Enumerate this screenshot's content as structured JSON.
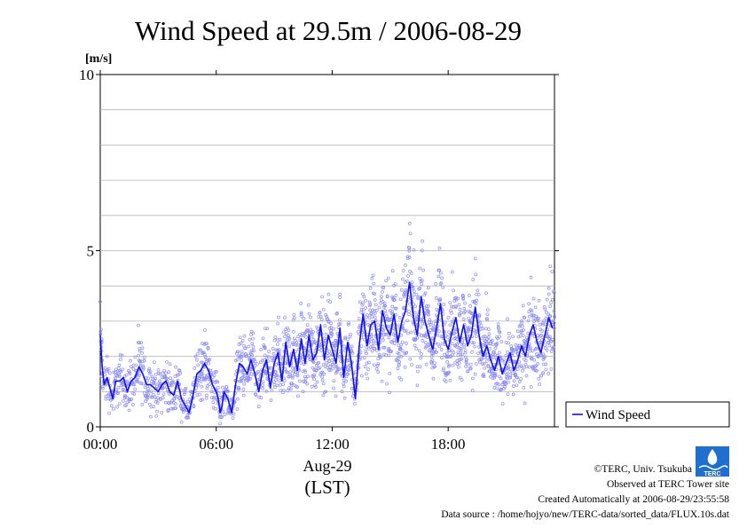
{
  "chart_data": {
    "type": "line",
    "title": "Wind Speed at 29.5m / 2006-08-29",
    "yunit": "[m/s]",
    "ylim": [
      0,
      10
    ],
    "yticks": [
      0,
      5,
      10
    ],
    "ygrid": [
      1,
      2,
      3,
      4,
      5,
      6,
      7,
      8,
      9
    ],
    "xlim_hours": [
      0,
      23.5
    ],
    "xticks": [
      {
        "hour": 0,
        "label": "00:00"
      },
      {
        "hour": 6,
        "label": "06:00"
      },
      {
        "hour": 12,
        "label": "12:00"
      },
      {
        "hour": 18,
        "label": "18:00"
      }
    ],
    "xlabel_date": "Aug-29",
    "xlabel_tz": "(LST)",
    "legend": {
      "label": "Wind Speed",
      "position": "right"
    },
    "series": [
      {
        "name": "Wind Speed",
        "color": "#1010ee",
        "scatter_color": "#8c8cf2",
        "x": [
          0,
          0.1,
          0.2,
          0.35,
          0.5,
          0.65,
          0.8,
          1.0,
          1.2,
          1.4,
          1.6,
          1.8,
          2.0,
          2.2,
          2.4,
          2.6,
          2.8,
          3.0,
          3.2,
          3.4,
          3.6,
          3.8,
          4.0,
          4.2,
          4.4,
          4.6,
          4.8,
          5.0,
          5.2,
          5.4,
          5.6,
          5.8,
          6.0,
          6.1,
          6.2,
          6.3,
          6.4,
          6.5,
          6.6,
          6.8,
          7.0,
          7.2,
          7.4,
          7.6,
          7.8,
          8.0,
          8.2,
          8.4,
          8.6,
          8.8,
          9.0,
          9.2,
          9.4,
          9.6,
          9.8,
          10.0,
          10.2,
          10.4,
          10.6,
          10.8,
          11.0,
          11.2,
          11.4,
          11.6,
          11.8,
          12.0,
          12.2,
          12.4,
          12.6,
          12.8,
          13.0,
          13.2,
          13.4,
          13.6,
          13.8,
          14.0,
          14.2,
          14.4,
          14.6,
          14.8,
          15.0,
          15.2,
          15.4,
          15.6,
          15.8,
          16.0,
          16.2,
          16.4,
          16.6,
          16.8,
          17.0,
          17.2,
          17.4,
          17.6,
          17.8,
          18.0,
          18.2,
          18.4,
          18.6,
          18.8,
          19.0,
          19.2,
          19.4,
          19.6,
          19.8,
          20.0,
          20.2,
          20.4,
          20.6,
          20.8,
          21.0,
          21.2,
          21.4,
          21.6,
          21.8,
          22.0,
          22.2,
          22.4,
          22.6,
          22.8,
          23.0,
          23.2,
          23.4
        ],
        "y": [
          2.6,
          1.7,
          1.2,
          1.4,
          1.1,
          0.8,
          1.3,
          1.3,
          1.4,
          1.0,
          1.3,
          1.4,
          1.7,
          1.5,
          1.2,
          1.2,
          1.1,
          1.0,
          1.2,
          1.3,
          1.0,
          0.9,
          1.3,
          0.8,
          0.6,
          0.4,
          0.9,
          1.5,
          1.6,
          1.8,
          1.6,
          1.2,
          1.0,
          0.8,
          0.4,
          0.6,
          1.0,
          0.9,
          0.8,
          0.4,
          1.2,
          1.8,
          1.7,
          1.5,
          1.9,
          1.5,
          1.0,
          1.6,
          1.9,
          1.1,
          1.8,
          2.1,
          1.3,
          2.4,
          1.7,
          2.2,
          1.6,
          2.5,
          1.8,
          2.6,
          1.9,
          2.1,
          2.9,
          1.9,
          2.6,
          2.2,
          1.8,
          2.8,
          1.4,
          2.4,
          1.8,
          0.8,
          2.3,
          3.2,
          2.3,
          2.9,
          3.0,
          2.2,
          3.3,
          2.8,
          2.6,
          3.2,
          2.4,
          3.0,
          3.3,
          4.1,
          3.1,
          2.6,
          3.7,
          3.0,
          2.6,
          2.2,
          2.8,
          3.5,
          2.5,
          2.2,
          2.7,
          3.1,
          2.4,
          2.9,
          2.3,
          2.6,
          3.4,
          2.6,
          2.0,
          2.3,
          1.9,
          1.6,
          2.0,
          1.5,
          1.8,
          2.1,
          1.6,
          1.9,
          2.3,
          2.0,
          2.6,
          2.9,
          2.4,
          2.1,
          2.6,
          3.1,
          2.8
        ]
      }
    ]
  },
  "credits": {
    "copyright": "©TERC, Univ. Tsukuba",
    "observed": "Observed at TERC Tower site",
    "created": "Created Automatically at 2006-08-29/23:55:58",
    "source": "Data source : /home/hojyo/new/TERC-data/sorted_data/FLUX.10s.dat",
    "logo_text": "TERC"
  }
}
